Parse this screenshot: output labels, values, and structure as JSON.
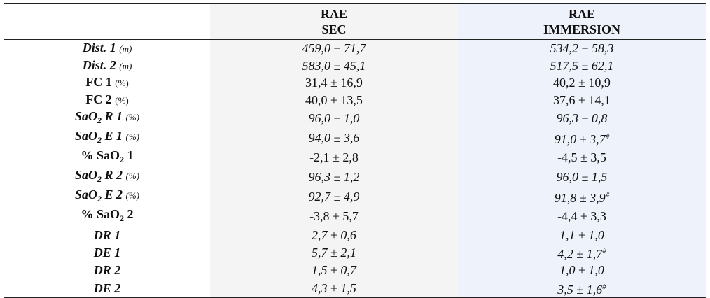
{
  "table": {
    "header": [
      [
        "RAE",
        "SEC"
      ],
      [
        "RAE",
        "IMMERSION"
      ]
    ],
    "rows": [
      {
        "label": [
          "Dist. 1"
        ],
        "unit": "(m)",
        "italic": true,
        "values": [
          {
            "text": "459,0 ± 71,7"
          },
          {
            "text": "534,2 ± 58,3"
          }
        ]
      },
      {
        "label": [
          "Dist. 2"
        ],
        "unit": "(m)",
        "italic": true,
        "values": [
          {
            "text": "583,0 ± 45,1"
          },
          {
            "text": "517,5 ± 62,1"
          }
        ]
      },
      {
        "label": [
          "FC 1"
        ],
        "unit": "(%)",
        "italic": false,
        "values": [
          {
            "text": "31,4 ± 16,9"
          },
          {
            "text": "40,2 ± 10,9"
          }
        ]
      },
      {
        "label": [
          "FC 2"
        ],
        "unit": "(%)",
        "italic": false,
        "values": [
          {
            "text": "40,0 ± 13,5"
          },
          {
            "text": "37,6 ± 14,1"
          }
        ]
      },
      {
        "label": [
          "SaO",
          "2",
          " R 1"
        ],
        "unit": "(%)",
        "italic": true,
        "values": [
          {
            "text": "96,0 ± 1,0"
          },
          {
            "text": "96,3 ± 0,8"
          }
        ]
      },
      {
        "label": [
          "SaO",
          "2",
          " E 1"
        ],
        "unit": "(%)",
        "italic": true,
        "values": [
          {
            "text": "94,0 ± 3,6"
          },
          {
            "text": "91,0 ± 3,7",
            "mark": "#"
          }
        ]
      },
      {
        "label": [
          "% SaO",
          "2",
          " 1"
        ],
        "italic": false,
        "values": [
          {
            "text": "-2,1 ± 2,8"
          },
          {
            "text": "-4,5 ± 3,5"
          }
        ]
      },
      {
        "label": [
          "SaO",
          "2",
          " R 2"
        ],
        "unit": "(%)",
        "italic": true,
        "values": [
          {
            "text": "96,3 ± 1,2"
          },
          {
            "text": "96,0 ± 1,5"
          }
        ]
      },
      {
        "label": [
          "SaO",
          "2",
          " E 2"
        ],
        "unit": "(%)",
        "italic": true,
        "values": [
          {
            "text": "92,7 ± 4,9"
          },
          {
            "text": "91,8 ± 3,9",
            "mark": "#"
          }
        ]
      },
      {
        "label": [
          "% SaO",
          "2",
          " 2"
        ],
        "italic": false,
        "values": [
          {
            "text": "-3,8 ± 5,7"
          },
          {
            "text": "-4,4 ± 3,3"
          }
        ]
      },
      {
        "label": [
          "DR 1"
        ],
        "italic": true,
        "values": [
          {
            "text": "2,7 ± 0,6"
          },
          {
            "text": "1,1 ± 1,0"
          }
        ]
      },
      {
        "label": [
          "DE 1"
        ],
        "italic": true,
        "values": [
          {
            "text": "5,7 ± 2,1"
          },
          {
            "text": "4,2 ± 1,7",
            "mark": "#"
          }
        ]
      },
      {
        "label": [
          "DR 2"
        ],
        "italic": true,
        "values": [
          {
            "text": "1,5 ± 0,7"
          },
          {
            "text": "1,0 ± 1,0"
          }
        ]
      },
      {
        "label": [
          "DE 2"
        ],
        "italic": true,
        "values": [
          {
            "text": "4,3 ± 1,5"
          },
          {
            "text": "3,5 ± 1,6",
            "mark": "#"
          }
        ]
      }
    ]
  }
}
